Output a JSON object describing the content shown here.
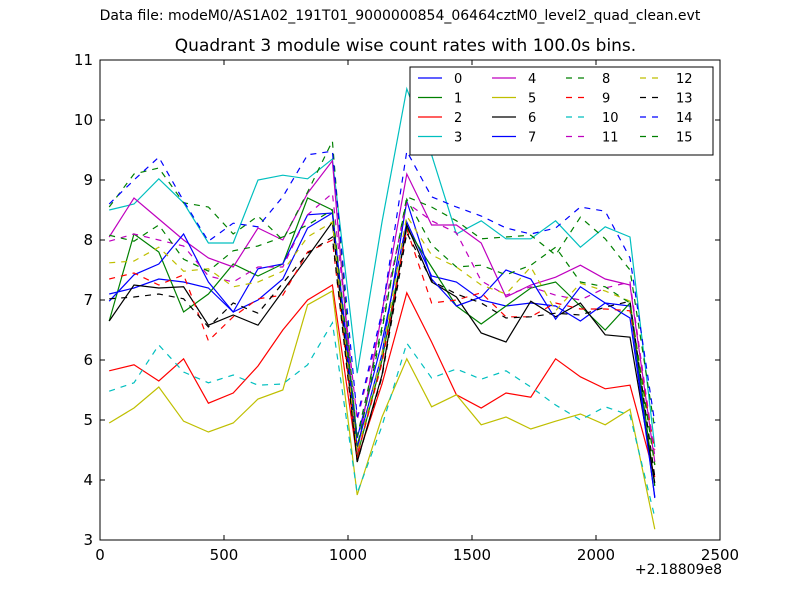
{
  "figure": {
    "supertitle": "Data file: modeM0/AS1A02_191T01_9000000854_06464cztM0_level2_quad_clean.evt"
  },
  "chart_data": {
    "type": "line",
    "title": "Quadrant 3 module wise count rates with 100.0s bins.",
    "xlabel": "",
    "ylabel": "",
    "x_offset_label": "+2.18809e8",
    "xlim": [
      0,
      2500
    ],
    "ylim": [
      3,
      11
    ],
    "xticks": [
      0,
      500,
      1000,
      1500,
      2000,
      2500
    ],
    "yticks": [
      3,
      4,
      5,
      6,
      7,
      8,
      9,
      10,
      11
    ],
    "grid": false,
    "legend_position": "top-right",
    "legend_columns": 4,
    "x": [
      37,
      137,
      237,
      337,
      437,
      537,
      637,
      737,
      837,
      937,
      1037,
      1137,
      1237,
      1337,
      1437,
      1537,
      1637,
      1737,
      1837,
      1937,
      2037,
      2137,
      2237
    ],
    "series": [
      {
        "name": "0",
        "color": "#0000ff",
        "dash": "solid",
        "values": [
          7.1,
          7.2,
          7.35,
          7.3,
          7.2,
          6.8,
          7.0,
          7.35,
          8.2,
          8.45,
          4.7,
          6.3,
          8.3,
          7.4,
          7.3,
          7.0,
          6.9,
          6.95,
          6.9,
          6.65,
          6.95,
          6.9,
          3.7
        ]
      },
      {
        "name": "1",
        "color": "#008000",
        "dash": "solid",
        "values": [
          6.65,
          8.1,
          7.8,
          6.8,
          7.1,
          7.6,
          7.4,
          7.6,
          8.7,
          8.5,
          4.4,
          6.0,
          8.2,
          7.55,
          6.9,
          6.6,
          6.9,
          7.2,
          7.3,
          6.9,
          6.5,
          6.95,
          3.9
        ]
      },
      {
        "name": "2",
        "color": "#ff0000",
        "dash": "solid",
        "values": [
          5.82,
          5.92,
          5.65,
          6.02,
          5.28,
          5.45,
          5.9,
          6.5,
          7.0,
          7.25,
          4.35,
          5.6,
          7.12,
          6.3,
          5.42,
          5.2,
          5.45,
          5.38,
          6.02,
          5.72,
          5.52,
          5.58,
          4.05
        ]
      },
      {
        "name": "3",
        "color": "#00bfbf",
        "dash": "solid",
        "values": [
          8.5,
          8.6,
          9.02,
          8.62,
          7.95,
          7.95,
          9.0,
          9.08,
          9.02,
          9.35,
          5.78,
          8.3,
          10.52,
          9.42,
          8.1,
          8.32,
          8.02,
          8.02,
          8.32,
          7.88,
          8.22,
          8.05,
          4.55
        ]
      },
      {
        "name": "4",
        "color": "#bf00bf",
        "dash": "solid",
        "values": [
          8.05,
          8.7,
          8.35,
          8.0,
          7.7,
          7.55,
          8.2,
          8.0,
          8.78,
          9.32,
          4.45,
          6.8,
          9.1,
          8.25,
          8.25,
          7.95,
          7.05,
          7.25,
          7.38,
          7.58,
          7.35,
          7.25,
          4.3
        ]
      },
      {
        "name": "5",
        "color": "#bfbf00",
        "dash": "solid",
        "values": [
          4.95,
          5.2,
          5.55,
          4.98,
          4.8,
          4.95,
          5.35,
          5.5,
          6.92,
          7.15,
          3.75,
          5.05,
          6.02,
          5.22,
          5.42,
          4.92,
          5.05,
          4.85,
          4.98,
          5.1,
          4.92,
          5.18,
          3.18
        ]
      },
      {
        "name": "6",
        "color": "#000000",
        "dash": "solid",
        "values": [
          6.65,
          7.25,
          7.2,
          7.22,
          6.58,
          6.75,
          6.58,
          7.15,
          7.72,
          8.3,
          4.3,
          5.75,
          8.25,
          7.3,
          7.05,
          6.45,
          6.3,
          6.98,
          6.72,
          6.95,
          6.42,
          6.38,
          3.95
        ]
      },
      {
        "name": "7",
        "color": "#0000ff",
        "dash": "solid",
        "values": [
          6.98,
          7.42,
          7.6,
          8.1,
          7.3,
          6.8,
          7.52,
          7.6,
          8.42,
          8.45,
          4.55,
          6.1,
          8.65,
          7.35,
          6.9,
          7.05,
          7.5,
          7.35,
          6.68,
          7.22,
          6.95,
          6.7,
          3.72
        ]
      },
      {
        "name": "8",
        "color": "#008000",
        "dash": "dashed",
        "values": [
          8.55,
          9.1,
          9.2,
          8.62,
          8.55,
          8.1,
          8.4,
          8.0,
          8.8,
          9.65,
          4.55,
          6.5,
          8.72,
          8.55,
          8.32,
          8.02,
          8.05,
          8.08,
          7.75,
          8.38,
          8.02,
          7.5,
          4.85
        ]
      },
      {
        "name": "9",
        "color": "#ff0000",
        "dash": "dashed",
        "values": [
          7.35,
          7.45,
          7.25,
          7.42,
          6.32,
          6.72,
          7.02,
          7.08,
          7.8,
          8.0,
          4.4,
          5.95,
          8.18,
          6.95,
          7.0,
          7.12,
          6.72,
          6.72,
          6.95,
          6.85,
          6.85,
          6.82,
          4.5
        ]
      },
      {
        "name": "10",
        "color": "#00bfbf",
        "dash": "dashed",
        "values": [
          5.48,
          5.62,
          6.25,
          5.8,
          5.62,
          5.75,
          5.58,
          5.6,
          5.92,
          6.62,
          3.78,
          4.9,
          6.28,
          5.7,
          5.85,
          5.68,
          5.82,
          5.55,
          5.25,
          5.0,
          5.22,
          5.08,
          3.38
        ]
      },
      {
        "name": "11",
        "color": "#bf00bf",
        "dash": "dashed",
        "values": [
          7.98,
          8.1,
          8.0,
          7.9,
          7.4,
          7.3,
          7.55,
          7.55,
          8.42,
          8.78,
          5.0,
          6.7,
          8.62,
          8.32,
          8.12,
          7.32,
          7.08,
          7.22,
          7.08,
          7.0,
          7.2,
          7.3,
          4.4
        ]
      },
      {
        "name": "12",
        "color": "#bfbf00",
        "dash": "dashed",
        "values": [
          7.62,
          7.65,
          7.88,
          7.48,
          7.52,
          7.22,
          7.3,
          7.48,
          8.05,
          8.3,
          4.45,
          6.1,
          8.4,
          7.75,
          7.55,
          7.25,
          7.1,
          7.55,
          6.82,
          7.28,
          7.15,
          6.98,
          4.25
        ]
      },
      {
        "name": "13",
        "color": "#000000",
        "dash": "dashed",
        "values": [
          7.02,
          7.05,
          7.1,
          7.02,
          6.55,
          6.95,
          6.78,
          7.28,
          7.78,
          8.05,
          4.3,
          5.72,
          8.12,
          7.32,
          7.1,
          6.95,
          6.7,
          6.72,
          6.78,
          6.75,
          6.88,
          6.98,
          4.05
        ]
      },
      {
        "name": "14",
        "color": "#0000ff",
        "dash": "dashed",
        "values": [
          8.6,
          9.0,
          9.38,
          8.65,
          7.98,
          8.28,
          8.22,
          8.72,
          9.42,
          9.48,
          5.05,
          6.8,
          9.48,
          8.72,
          8.55,
          8.4,
          8.2,
          8.1,
          8.2,
          8.55,
          8.48,
          7.7,
          4.95
        ]
      },
      {
        "name": "15",
        "color": "#008000",
        "dash": "dashed",
        "values": [
          8.08,
          7.98,
          8.25,
          7.68,
          7.48,
          7.82,
          7.9,
          8.05,
          8.25,
          8.5,
          4.72,
          6.55,
          8.68,
          7.92,
          7.55,
          7.58,
          7.42,
          7.58,
          7.88,
          7.3,
          7.22,
          6.95,
          4.25
        ]
      }
    ]
  }
}
